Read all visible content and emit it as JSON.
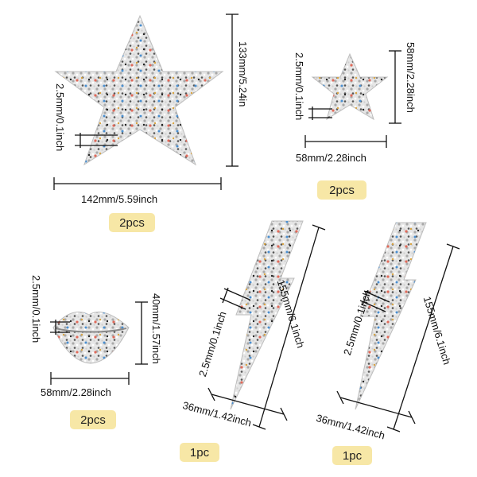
{
  "colors": {
    "badge": "#f7e7a6",
    "line": "#111111",
    "rhinestone": "#e3e3e3"
  },
  "big_star": {
    "height": "133mm/5.24in",
    "width": "142mm/5.59inch",
    "thickness": "2.5mm/0.1inch",
    "qty": "2pcs"
  },
  "small_star": {
    "height": "58mm/2.28inch",
    "width": "58mm/2.28inch",
    "thickness": "2.5mm/0.1inch",
    "qty": "2pcs"
  },
  "lips": {
    "height": "40mm/1.57inch",
    "width": "58mm/2.28inch",
    "thickness": "2.5mm/0.1inch",
    "qty": "2pcs"
  },
  "bolt_left": {
    "length": "155mm/6.1inch",
    "width": "36mm/1.42inch",
    "thickness": "2.5mm/0.1inch",
    "qty": "1pc"
  },
  "bolt_right": {
    "length": "155mm/6.1inch",
    "width": "36mm/1.42inch",
    "thickness": "2.5mm/0.1inch",
    "qty": "1pc"
  }
}
